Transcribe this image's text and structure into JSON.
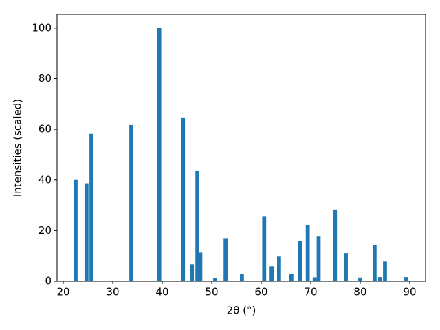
{
  "chart_data": {
    "type": "bar",
    "xlabel": "2θ (°)",
    "ylabel": "Intensities (scaled)",
    "x": [
      22.5,
      24.7,
      25.7,
      33.75,
      39.4,
      44.2,
      46.0,
      47.1,
      47.7,
      50.7,
      52.8,
      56.1,
      60.6,
      62.1,
      63.6,
      66.1,
      67.9,
      69.4,
      70.8,
      71.6,
      74.9,
      77.1,
      80.0,
      82.9,
      84.0,
      85.0,
      89.3
    ],
    "values": [
      40,
      38.7,
      58.2,
      61.7,
      100,
      64.7,
      6.7,
      43.5,
      11.3,
      1.2,
      17,
      2.7,
      25.7,
      5.9,
      9.7,
      3.0,
      16,
      22.2,
      1.5,
      17.6,
      28.3,
      11.1,
      1.4,
      14.3,
      1.6,
      7.8,
      1.6
    ],
    "color": "#1f77b4",
    "xlim": [
      18.75,
      93.2
    ],
    "ylim": [
      0,
      105.4
    ],
    "xticks": [
      20,
      30,
      40,
      50,
      60,
      70,
      80,
      90
    ],
    "yticks": [
      0,
      20,
      40,
      60,
      80,
      100
    ],
    "grid": false
  }
}
